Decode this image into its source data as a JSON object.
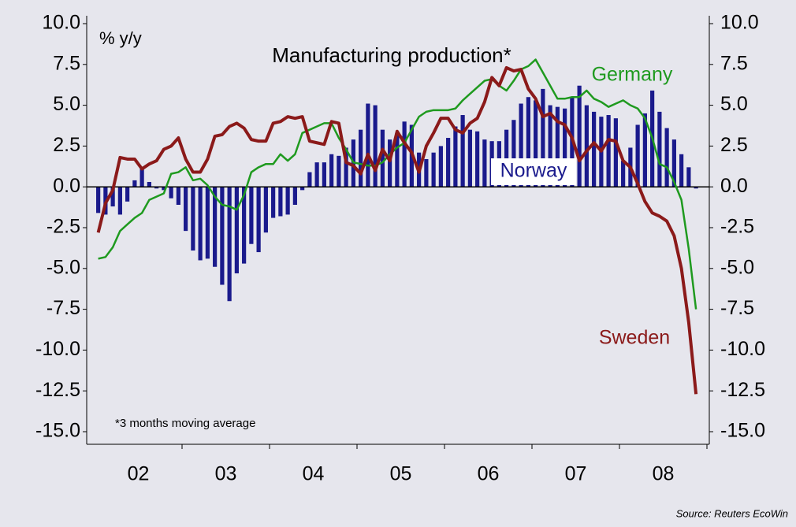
{
  "chart_data": {
    "type": "bar-line",
    "title": "Manufacturing production*",
    "unit_label": "% y/y",
    "footnote": "*3 months moving average",
    "source": "Source: Reuters EcoWin",
    "categories": [
      "02",
      null,
      null,
      null,
      null,
      null,
      null,
      null,
      null,
      null,
      null,
      null,
      "03",
      null,
      null,
      null,
      null,
      null,
      null,
      null,
      null,
      null,
      null,
      null,
      "04",
      null,
      null,
      null,
      null,
      null,
      null,
      null,
      null,
      null,
      null,
      null,
      "05",
      null,
      null,
      null,
      null,
      null,
      null,
      null,
      null,
      null,
      null,
      null,
      "06",
      null,
      null,
      null,
      null,
      null,
      null,
      null,
      null,
      null,
      null,
      null,
      "07",
      null,
      null,
      null,
      null,
      null,
      null,
      null,
      null,
      null,
      null,
      null,
      "08",
      null,
      null,
      null,
      null,
      null,
      null,
      null,
      null,
      null,
      null
    ],
    "series": [
      {
        "name": "Norway",
        "kind": "bar",
        "color": "#1a1a8c",
        "values": [
          -1.6,
          -1.7,
          -1.2,
          -1.7,
          -0.9,
          0.4,
          1.2,
          0.3,
          -0.1,
          -0.2,
          -0.7,
          -1.1,
          -2.7,
          -3.9,
          -4.5,
          -4.4,
          -4.9,
          -6.0,
          -7.0,
          -5.3,
          -4.7,
          -3.5,
          -4.0,
          -2.8,
          -1.9,
          -1.8,
          -1.7,
          -1.1,
          -0.2,
          0.9,
          1.5,
          1.5,
          2.0,
          1.9,
          2.4,
          2.9,
          3.5,
          5.1,
          5.0,
          3.5,
          2.9,
          3.3,
          4.0,
          3.8,
          2.1,
          1.7,
          2.1,
          2.5,
          3.0,
          3.7,
          4.4,
          3.5,
          3.4,
          2.9,
          2.8,
          2.8,
          3.5,
          4.1,
          5.1,
          5.5,
          5.3,
          6.0,
          5.0,
          4.9,
          4.8,
          5.5,
          6.2,
          5.0,
          4.6,
          4.3,
          4.4,
          4.2,
          1.6,
          2.4,
          3.8,
          4.5,
          5.9,
          4.6,
          3.6,
          2.9,
          2.0,
          1.2,
          -0.1
        ]
      },
      {
        "name": "Germany",
        "kind": "line",
        "color": "#1f9a1f",
        "values": [
          -4.4,
          -4.3,
          -3.7,
          -2.7,
          -2.3,
          -1.9,
          -1.6,
          -0.8,
          -0.6,
          -0.4,
          0.8,
          0.9,
          1.2,
          0.4,
          0.5,
          0.1,
          -0.6,
          -1.1,
          -1.2,
          -1.4,
          -0.5,
          0.9,
          1.2,
          1.4,
          1.4,
          2.0,
          1.6,
          2.0,
          3.3,
          3.5,
          3.7,
          3.9,
          3.9,
          3.0,
          2.3,
          1.5,
          1.4,
          1.3,
          1.3,
          1.5,
          2.0,
          2.4,
          2.7,
          3.5,
          4.3,
          4.6,
          4.7,
          4.7,
          4.7,
          4.8,
          5.3,
          5.7,
          6.1,
          6.5,
          6.6,
          6.2,
          5.9,
          6.5,
          7.2,
          7.4,
          7.8,
          7.0,
          6.2,
          5.4,
          5.4,
          5.5,
          5.5,
          5.9,
          5.4,
          5.2,
          4.9,
          5.1,
          5.3,
          5.0,
          4.8,
          4.2,
          3.0,
          1.4,
          1.2,
          0.3,
          -0.8,
          -3.8,
          -7.5
        ]
      },
      {
        "name": "Sweden",
        "kind": "line",
        "color": "#8b1a1a",
        "values": [
          -2.8,
          -1.0,
          -0.2,
          1.8,
          1.7,
          1.7,
          1.1,
          1.4,
          1.6,
          2.3,
          2.5,
          3.0,
          1.7,
          0.9,
          0.9,
          1.7,
          3.1,
          3.2,
          3.7,
          3.9,
          3.6,
          2.9,
          2.8,
          2.8,
          3.9,
          4.0,
          4.3,
          4.2,
          4.3,
          2.8,
          2.7,
          2.6,
          4.0,
          3.9,
          1.5,
          1.3,
          0.8,
          2.0,
          1.0,
          2.3,
          1.6,
          3.4,
          2.7,
          2.1,
          0.9,
          2.5,
          3.3,
          4.2,
          4.2,
          3.5,
          3.3,
          3.9,
          4.2,
          5.2,
          6.7,
          6.2,
          7.3,
          7.1,
          7.2,
          6.0,
          5.4,
          4.3,
          4.5,
          4.0,
          3.8,
          3.0,
          1.6,
          2.2,
          2.7,
          2.2,
          2.9,
          2.8,
          1.6,
          1.2,
          0.2,
          -0.9,
          -1.6,
          -1.8,
          -2.1,
          -3.0,
          -5.0,
          -8.3,
          -12.7
        ]
      }
    ],
    "ylim": [
      -15,
      10
    ],
    "yticks": [
      {
        "value": 10,
        "label": "10.0"
      },
      7.5,
      {
        "value": 5,
        "label": "5.0"
      },
      2.5,
      {
        "value": 0,
        "label": "0.0"
      },
      -2.5,
      {
        "value": -5,
        "label": "-5.0"
      },
      -7.5,
      {
        "value": -10,
        "label": "-10.0"
      },
      -12.5,
      {
        "value": -15,
        "label": "-15.0"
      }
    ],
    "y2lim": [
      -15,
      10
    ],
    "y2ticks": [
      {
        "value": 10,
        "label": "10.0"
      },
      7.5,
      {
        "value": 5,
        "label": "5.0"
      },
      2.5,
      {
        "value": 0,
        "label": "0.0"
      },
      -2.5,
      {
        "value": -5,
        "label": "-5.0"
      },
      -7.5,
      {
        "value": -10,
        "label": "-10.0"
      },
      -12.5,
      {
        "value": -15,
        "label": "-15.0"
      }
    ],
    "grid": false
  }
}
